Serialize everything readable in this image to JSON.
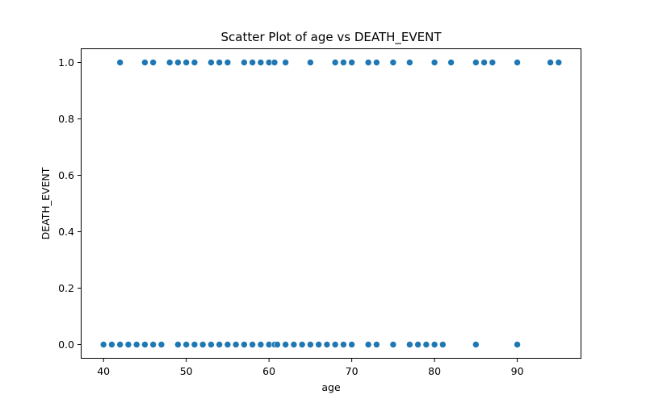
{
  "chart_data": {
    "type": "scatter",
    "title": "Scatter Plot of age vs DEATH_EVENT",
    "xlabel": "age",
    "ylabel": "DEATH_EVENT",
    "xlim": [
      37.25,
      97.75
    ],
    "ylim": [
      -0.05,
      1.05
    ],
    "xticks": [
      40,
      50,
      60,
      70,
      80,
      90
    ],
    "yticks": [
      0.0,
      0.2,
      0.4,
      0.6,
      0.8,
      1.0
    ],
    "xtick_labels": [
      "40",
      "50",
      "60",
      "70",
      "80",
      "90"
    ],
    "ytick_labels": [
      "0.0",
      "0.2",
      "0.4",
      "0.6",
      "0.8",
      "1.0"
    ],
    "grid": false,
    "marker_color": "#1f77b4",
    "series": [
      {
        "x": [
          42,
          45,
          46,
          48,
          49,
          50,
          51,
          53,
          54,
          55,
          57,
          58,
          59,
          60,
          60.667,
          62,
          65,
          68,
          69,
          70,
          72,
          73,
          75,
          77,
          80,
          82,
          85,
          86,
          87,
          90,
          94,
          95,
          40,
          41,
          42,
          43,
          44,
          45,
          46,
          47,
          49,
          50,
          51,
          52,
          53,
          54,
          55,
          56,
          57,
          58,
          59,
          60,
          60.667,
          61,
          62,
          63,
          64,
          65,
          66,
          67,
          68,
          69,
          70,
          72,
          73,
          75,
          77,
          78,
          79,
          80,
          81,
          85,
          90
        ],
        "y": [
          1,
          1,
          1,
          1,
          1,
          1,
          1,
          1,
          1,
          1,
          1,
          1,
          1,
          1,
          1,
          1,
          1,
          1,
          1,
          1,
          1,
          1,
          1,
          1,
          1,
          1,
          1,
          1,
          1,
          1,
          1,
          1,
          0,
          0,
          0,
          0,
          0,
          0,
          0,
          0,
          0,
          0,
          0,
          0,
          0,
          0,
          0,
          0,
          0,
          0,
          0,
          0,
          0,
          0,
          0,
          0,
          0,
          0,
          0,
          0,
          0,
          0,
          0,
          0,
          0,
          0,
          0,
          0,
          0,
          0,
          0,
          0,
          0
        ]
      }
    ]
  }
}
